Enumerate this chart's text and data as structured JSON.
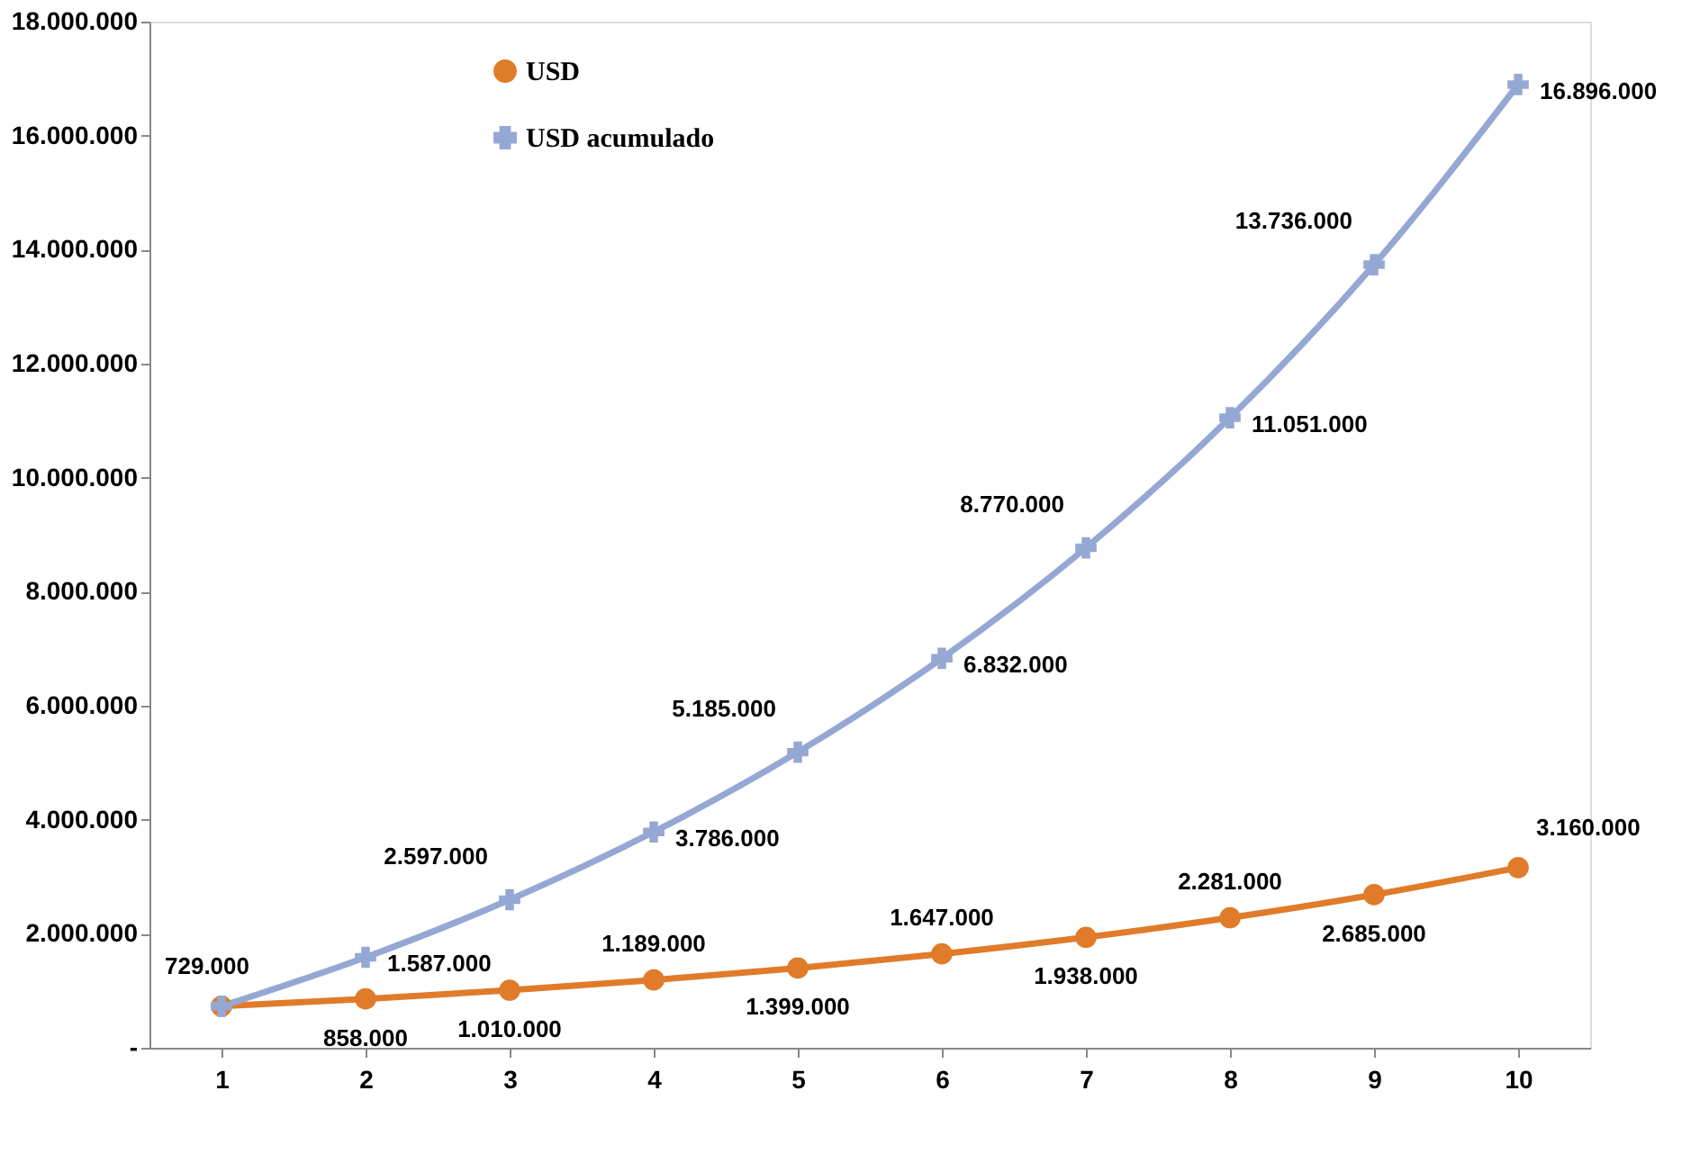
{
  "chart_data": {
    "type": "line",
    "categories": [
      "1",
      "2",
      "3",
      "4",
      "5",
      "6",
      "7",
      "8",
      "9",
      "10"
    ],
    "series": [
      {
        "name": "USD",
        "color": "#e07b2a",
        "marker": "circle",
        "values": [
          729000,
          858000,
          1010000,
          1189000,
          1399000,
          1647000,
          1938000,
          2281000,
          2685000,
          3160000
        ],
        "value_labels": [
          "729.000",
          "858.000",
          "1.010.000",
          "1.189.000",
          "1.399.000",
          "1.647.000",
          "1.938.000",
          "2.281.000",
          "2.685.000",
          "3.160.000"
        ]
      },
      {
        "name": "USD acumulado",
        "color": "#95a8d3",
        "marker": "cross",
        "values": [
          729000,
          1587000,
          2597000,
          3786000,
          5185000,
          6832000,
          8770000,
          11051000,
          13736000,
          16896000
        ],
        "value_labels": [
          null,
          "1.587.000",
          "2.597.000",
          "3.786.000",
          "5.185.000",
          "6.832.000",
          "8.770.000",
          "11.051.000",
          "13.736.000",
          "16.896.000"
        ]
      }
    ],
    "ylim": [
      0,
      18000000
    ],
    "yticks": [
      {
        "value": 0,
        "label": "-"
      },
      {
        "value": 2000000,
        "label": "2.000.000"
      },
      {
        "value": 4000000,
        "label": "4.000.000"
      },
      {
        "value": 6000000,
        "label": "6.000.000"
      },
      {
        "value": 8000000,
        "label": "8.000.000"
      },
      {
        "value": 10000000,
        "label": "10.000.000"
      },
      {
        "value": 12000000,
        "label": "12.000.000"
      },
      {
        "value": 14000000,
        "label": "14.000.000"
      },
      {
        "value": 16000000,
        "label": "16.000.000"
      },
      {
        "value": 18000000,
        "label": "18.000.000"
      }
    ],
    "grid": false,
    "legend": "top left",
    "line_style": "solid"
  }
}
